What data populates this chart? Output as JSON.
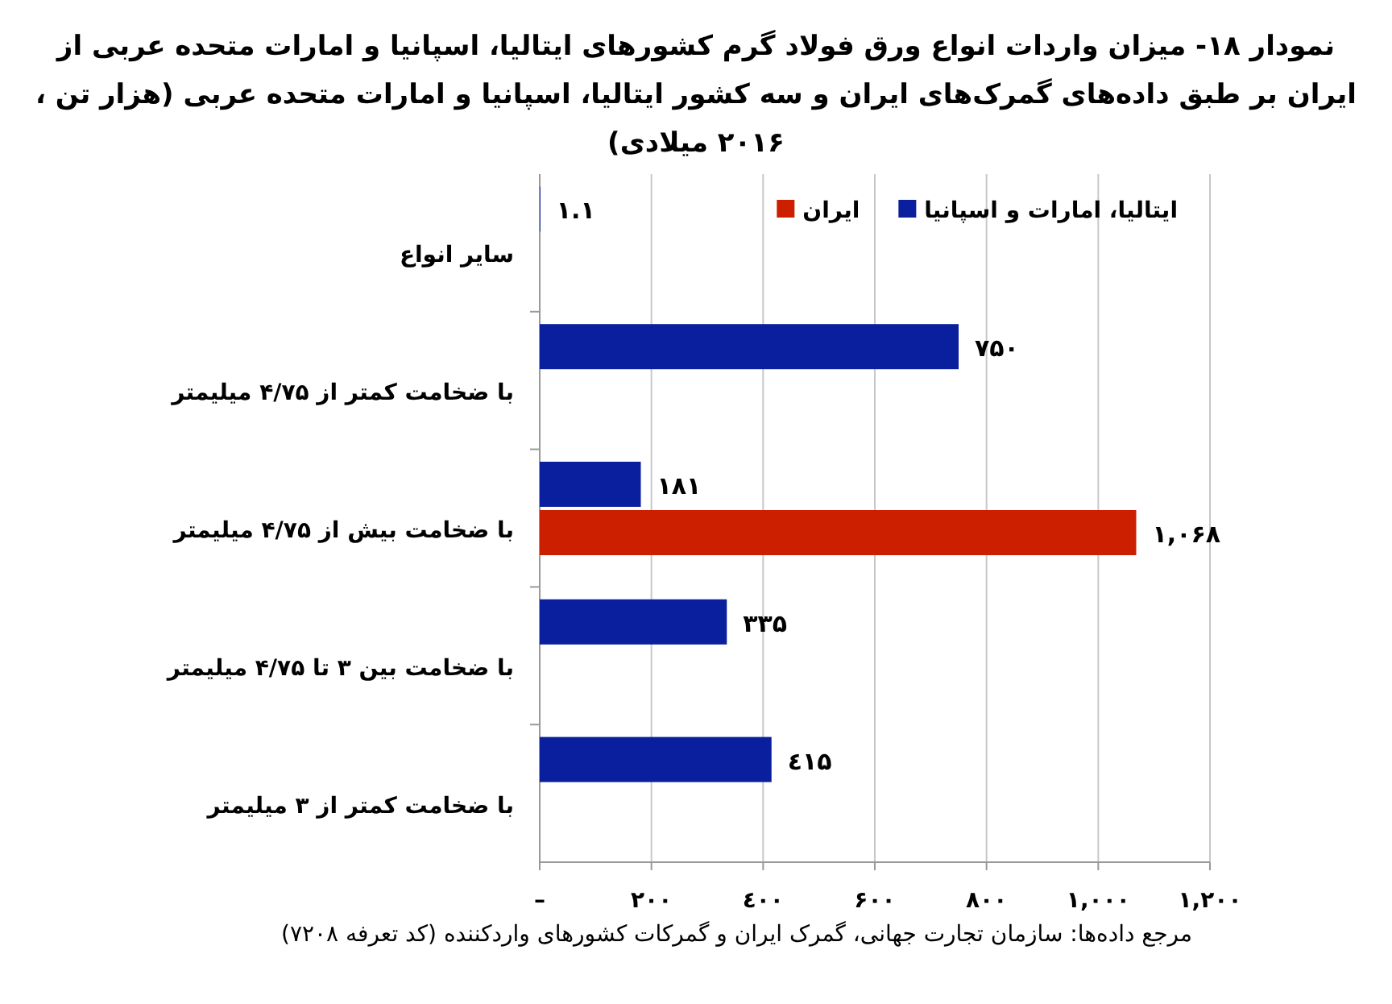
{
  "chart_data": {
    "type": "bar",
    "orientation": "horizontal",
    "title": "نمودار ۱۸- میزان واردات انواع ورق فولاد گرم کشورهای ایتالیا، اسپانیا و امارات متحده عربی از ایران بر طبق داده‌های گمرک‌های ایران و سه کشور ایتالیا، اسپانیا و امارات متحده عربی (هزار تن ، ۲۰۱۶ میلادی)",
    "categories": [
      "سایر انواع",
      "با ضخامت کمتر از ۴/۷۵ میلیمتر",
      "با ضخامت بیش از ۴/۷۵ میلیمتر",
      "با ضخامت بین ۳ تا ۴/۷۵ میلیمتر",
      "با ضخامت کمتر از ۳ میلیمتر"
    ],
    "series": [
      {
        "name": "ایتالیا، امارات و اسپانیا",
        "color": "#0a1f9e",
        "values": [
          1.1,
          750,
          181,
          335,
          415
        ],
        "value_labels": [
          "۱.۱",
          "۷۵۰",
          "۱۸۱",
          "۳۳۵",
          "٤۱۵"
        ]
      },
      {
        "name": "ایران",
        "color": "#cc1f00",
        "values": [
          null,
          null,
          1068,
          null,
          null
        ],
        "value_labels": [
          null,
          null,
          "۱,۰۶۸",
          null,
          null
        ]
      }
    ],
    "xlim": [
      0,
      1200
    ],
    "xticks": [
      {
        "value": 0,
        "label": "–"
      },
      {
        "value": 200,
        "label": "۲۰۰"
      },
      {
        "value": 400,
        "label": "٤۰۰"
      },
      {
        "value": 600,
        "label": "۶۰۰"
      },
      {
        "value": 800,
        "label": "۸۰۰"
      },
      {
        "value": 1000,
        "label": "۱,۰۰۰"
      },
      {
        "value": 1200,
        "label": "۱,۲۰۰"
      }
    ],
    "grid": "x",
    "legend": "top right",
    "annotations": [
      "مرجع داده‌ها: سازمان تجارت جهانی، گمرک ایران و گمرکات کشورهای واردکننده (کد تعرفه ۷۲۰۸)"
    ]
  }
}
